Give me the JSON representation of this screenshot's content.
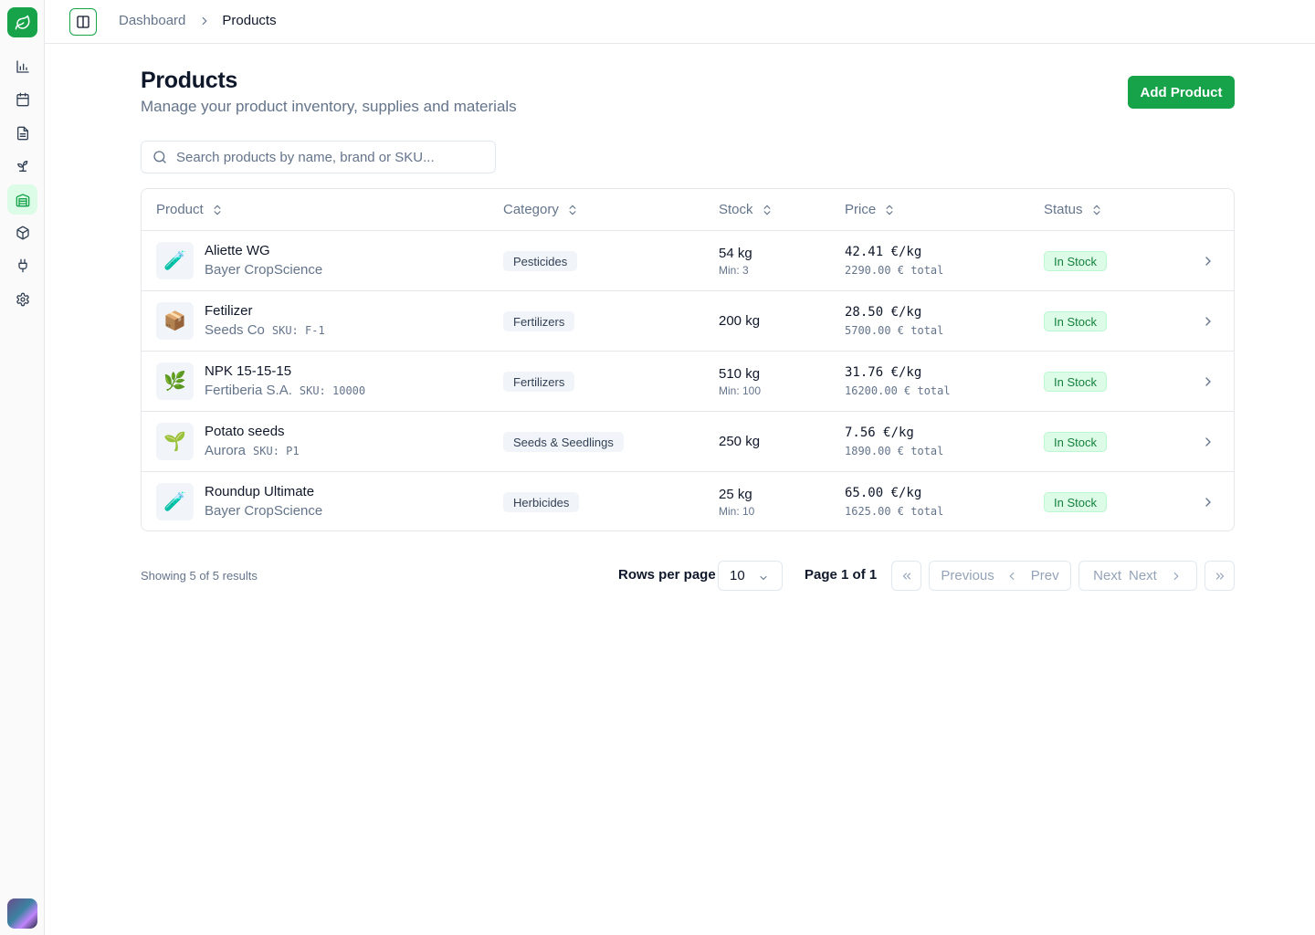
{
  "app": {
    "logo_icon": "leaf-icon",
    "brand_color": "#16a34a"
  },
  "nav": [
    {
      "id": "analytics",
      "icon": "bar-chart-icon"
    },
    {
      "id": "calendar",
      "icon": "calendar-icon"
    },
    {
      "id": "documents",
      "icon": "document-icon"
    },
    {
      "id": "crops",
      "icon": "sprout-icon"
    },
    {
      "id": "warehouse",
      "icon": "warehouse-icon",
      "active": true
    },
    {
      "id": "products",
      "icon": "package-icon"
    },
    {
      "id": "integrations",
      "icon": "plug-icon"
    },
    {
      "id": "settings",
      "icon": "gear-icon"
    }
  ],
  "breadcrumb": {
    "parent": "Dashboard",
    "current": "Products"
  },
  "header": {
    "title": "Products",
    "subtitle": "Manage your product inventory, supplies and materials",
    "add_label": "Add Product"
  },
  "search": {
    "placeholder": "Search products by name, brand or SKU..."
  },
  "table": {
    "columns": {
      "product": "Product",
      "category": "Category",
      "stock": "Stock",
      "price": "Price",
      "status": "Status"
    },
    "rows": [
      {
        "icon": "🧪",
        "name": "Aliette WG",
        "brand": "Bayer CropScience",
        "sku": "",
        "category": "Pesticides",
        "stock": "54 kg",
        "min": "Min: 3",
        "price": "42.41 €/kg",
        "total": "2290.00 € total",
        "status": "In Stock"
      },
      {
        "icon": "📦",
        "name": "Fetilizer",
        "brand": "Seeds Co",
        "sku": "SKU: F-1",
        "category": "Fertilizers",
        "stock": "200 kg",
        "min": "",
        "price": "28.50 €/kg",
        "total": "5700.00 € total",
        "status": "In Stock"
      },
      {
        "icon": "🌿",
        "name": "NPK 15-15-15",
        "brand": "Fertiberia S.A.",
        "sku": "SKU: 10000",
        "category": "Fertilizers",
        "stock": "510 kg",
        "min": "Min: 100",
        "price": "31.76 €/kg",
        "total": "16200.00 € total",
        "status": "In Stock"
      },
      {
        "icon": "🌱",
        "name": "Potato seeds",
        "brand": "Aurora",
        "sku": "SKU: P1",
        "category": "Seeds & Seedlings",
        "stock": "250 kg",
        "min": "",
        "price": "7.56 €/kg",
        "total": "1890.00 € total",
        "status": "In Stock"
      },
      {
        "icon": "🧪",
        "name": "Roundup Ultimate",
        "brand": "Bayer CropScience",
        "sku": "",
        "category": "Herbicides",
        "stock": "25 kg",
        "min": "Min: 10",
        "price": "65.00 €/kg",
        "total": "1625.00 € total",
        "status": "In Stock"
      }
    ]
  },
  "pagination": {
    "showing": "Showing 5 of 5 results",
    "rows_per_page_label": "Rows per page",
    "rows_per_page": "10",
    "page_info": "Page 1 of 1",
    "previous_label": "Previous",
    "prev_label": "Prev",
    "next_label": "Next",
    "next_short_label": "Next"
  }
}
